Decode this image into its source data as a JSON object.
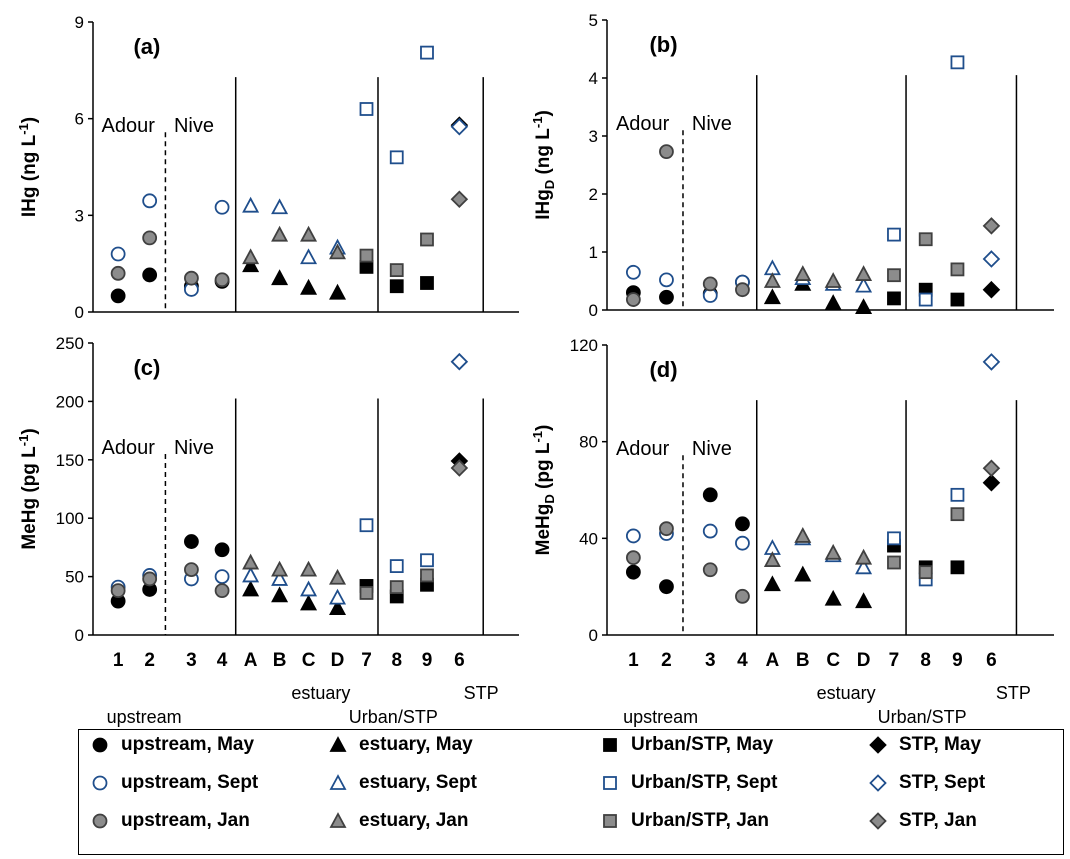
{
  "chart_data": [
    {
      "type": "scatter",
      "panel": "(a)",
      "ylabel": "IHg (ng L-1)",
      "ylabel_main": "IHg",
      "ylabel_sub": "",
      "ylabel_unit": " (ng L",
      "ylabel_sup": "-1",
      "ylabel_close": ")",
      "ylim": [
        0,
        9
      ],
      "yticks": [
        "0",
        "3",
        "6",
        "9"
      ],
      "categories": [
        "1",
        "2",
        "3",
        "4",
        "A",
        "B",
        "C",
        "D",
        "7",
        "8",
        "9",
        "6"
      ],
      "series": [
        {
          "name": "upstream, May",
          "x": [
            "1",
            "2",
            "3",
            "4"
          ],
          "values": [
            0.5,
            1.15,
            0.8,
            0.95
          ]
        },
        {
          "name": "upstream, Sept",
          "x": [
            "1",
            "2",
            "3",
            "4"
          ],
          "values": [
            1.8,
            3.45,
            0.7,
            3.25
          ]
        },
        {
          "name": "upstream, Jan",
          "x": [
            "1",
            "2",
            "3",
            "4"
          ],
          "values": [
            1.2,
            2.3,
            1.05,
            1.0
          ]
        },
        {
          "name": "estuary, May",
          "x": [
            "A",
            "B",
            "C",
            "D"
          ],
          "values": [
            1.45,
            1.05,
            0.75,
            0.6
          ]
        },
        {
          "name": "estuary, Sept",
          "x": [
            "A",
            "B",
            "C",
            "D"
          ],
          "values": [
            3.3,
            3.25,
            1.7,
            2.0
          ]
        },
        {
          "name": "estuary, Jan",
          "x": [
            "A",
            "B",
            "C",
            "D"
          ],
          "values": [
            1.7,
            2.4,
            2.4,
            1.85
          ]
        },
        {
          "name": "Urban/STP, May",
          "x": [
            "7",
            "8",
            "9"
          ],
          "values": [
            1.4,
            0.8,
            0.9
          ]
        },
        {
          "name": "Urban/STP, Sept",
          "x": [
            "7",
            "8",
            "9"
          ],
          "values": [
            6.3,
            4.8,
            8.05
          ]
        },
        {
          "name": "Urban/STP, Jan",
          "x": [
            "7",
            "8",
            "9"
          ],
          "values": [
            1.75,
            1.3,
            2.25
          ]
        },
        {
          "name": "STP, May",
          "x": [
            "6"
          ],
          "values": [
            5.8
          ]
        },
        {
          "name": "STP, Sept",
          "x": [
            "6"
          ],
          "values": [
            5.75
          ]
        },
        {
          "name": "STP, Jan",
          "x": [
            "6"
          ],
          "values": [
            3.5
          ]
        }
      ]
    },
    {
      "type": "scatter",
      "panel": "(b)",
      "ylabel": "IHgD (ng L-1)",
      "ylabel_main": "IHg",
      "ylabel_sub": "D",
      "ylabel_unit": " (ng L",
      "ylabel_sup": "-1",
      "ylabel_close": ")",
      "ylim": [
        0,
        5
      ],
      "yticks": [
        "0",
        "1",
        "2",
        "3",
        "4",
        "5"
      ],
      "categories": [
        "1",
        "2",
        "3",
        "4",
        "A",
        "B",
        "C",
        "D",
        "7",
        "8",
        "9",
        "6"
      ],
      "series": [
        {
          "name": "upstream, May",
          "x": [
            "1",
            "2",
            "3",
            "4"
          ],
          "values": [
            0.3,
            0.22,
            0.28,
            0.48
          ]
        },
        {
          "name": "upstream, Sept",
          "x": [
            "1",
            "2",
            "3",
            "4"
          ],
          "values": [
            0.65,
            0.52,
            0.25,
            0.48
          ]
        },
        {
          "name": "upstream, Jan",
          "x": [
            "1",
            "2",
            "3",
            "4"
          ],
          "values": [
            0.18,
            2.73,
            0.45,
            0.35
          ]
        },
        {
          "name": "estuary, May",
          "x": [
            "A",
            "B",
            "C",
            "D"
          ],
          "values": [
            0.22,
            0.45,
            0.12,
            0.05
          ]
        },
        {
          "name": "estuary, Sept",
          "x": [
            "A",
            "B",
            "C",
            "D"
          ],
          "values": [
            0.72,
            0.55,
            0.45,
            0.42
          ]
        },
        {
          "name": "estuary, Jan",
          "x": [
            "A",
            "B",
            "C",
            "D"
          ],
          "values": [
            0.5,
            0.62,
            0.5,
            0.62
          ]
        },
        {
          "name": "Urban/STP, May",
          "x": [
            "7",
            "8",
            "9"
          ],
          "values": [
            0.2,
            0.35,
            0.18
          ]
        },
        {
          "name": "Urban/STP, Sept",
          "x": [
            "7",
            "8",
            "9"
          ],
          "values": [
            1.3,
            0.18,
            4.27
          ]
        },
        {
          "name": "Urban/STP, Jan",
          "x": [
            "7",
            "8",
            "9"
          ],
          "values": [
            0.6,
            1.22,
            0.7
          ]
        },
        {
          "name": "STP, May",
          "x": [
            "6"
          ],
          "values": [
            0.35
          ]
        },
        {
          "name": "STP, Sept",
          "x": [
            "6"
          ],
          "values": [
            0.88
          ]
        },
        {
          "name": "STP, Jan",
          "x": [
            "6"
          ],
          "values": [
            1.45
          ]
        }
      ]
    },
    {
      "type": "scatter",
      "panel": "(c)",
      "ylabel": "MeHg (pg L-1)",
      "ylabel_main": "MeHg",
      "ylabel_sub": "",
      "ylabel_unit": " (pg L",
      "ylabel_sup": "-1",
      "ylabel_close": ")",
      "ylim": [
        0,
        250
      ],
      "yticks": [
        "0",
        "50",
        "100",
        "150",
        "200",
        "250"
      ],
      "categories": [
        "1",
        "2",
        "3",
        "4",
        "A",
        "B",
        "C",
        "D",
        "7",
        "8",
        "9",
        "6"
      ],
      "series": [
        {
          "name": "upstream, May",
          "x": [
            "1",
            "2",
            "3",
            "4"
          ],
          "values": [
            29,
            39,
            80,
            73
          ]
        },
        {
          "name": "upstream, Sept",
          "x": [
            "1",
            "2",
            "3",
            "4"
          ],
          "values": [
            41,
            51,
            48,
            50
          ]
        },
        {
          "name": "upstream, Jan",
          "x": [
            "1",
            "2",
            "3",
            "4"
          ],
          "values": [
            38,
            48,
            56,
            38
          ]
        },
        {
          "name": "estuary, May",
          "x": [
            "A",
            "B",
            "C",
            "D"
          ],
          "values": [
            39,
            34,
            27,
            23
          ]
        },
        {
          "name": "estuary, Sept",
          "x": [
            "A",
            "B",
            "C",
            "D"
          ],
          "values": [
            51,
            48,
            39,
            32
          ]
        },
        {
          "name": "estuary, Jan",
          "x": [
            "A",
            "B",
            "C",
            "D"
          ],
          "values": [
            62,
            56,
            56,
            49
          ]
        },
        {
          "name": "Urban/STP, May",
          "x": [
            "7",
            "8",
            "9"
          ],
          "values": [
            42,
            33,
            43
          ]
        },
        {
          "name": "Urban/STP, Sept",
          "x": [
            "7",
            "8",
            "9"
          ],
          "values": [
            94,
            59,
            64
          ]
        },
        {
          "name": "Urban/STP, Jan",
          "x": [
            "7",
            "8",
            "9"
          ],
          "values": [
            36,
            41,
            51
          ]
        },
        {
          "name": "STP, May",
          "x": [
            "6"
          ],
          "values": [
            149
          ]
        },
        {
          "name": "STP, Sept",
          "x": [
            "6"
          ],
          "values": [
            234
          ]
        },
        {
          "name": "STP, Jan",
          "x": [
            "6"
          ],
          "values": [
            143
          ]
        }
      ]
    },
    {
      "type": "scatter",
      "panel": "(d)",
      "ylabel": "MeHgD (pg L-1)",
      "ylabel_main": "MeHg",
      "ylabel_sub": "D",
      "ylabel_unit": " (pg L",
      "ylabel_sup": "-1",
      "ylabel_close": ")",
      "ylim": [
        0,
        120
      ],
      "yticks": [
        "0",
        "40",
        "80",
        "120"
      ],
      "categories": [
        "1",
        "2",
        "3",
        "4",
        "A",
        "B",
        "C",
        "D",
        "7",
        "8",
        "9",
        "6"
      ],
      "series": [
        {
          "name": "upstream, May",
          "x": [
            "1",
            "2",
            "3",
            "4"
          ],
          "values": [
            26,
            20,
            58,
            46
          ]
        },
        {
          "name": "upstream, Sept",
          "x": [
            "1",
            "2",
            "3",
            "4"
          ],
          "values": [
            41,
            42,
            43,
            38
          ]
        },
        {
          "name": "upstream, Jan",
          "x": [
            "1",
            "2",
            "3",
            "4"
          ],
          "values": [
            32,
            44,
            27,
            16
          ]
        },
        {
          "name": "estuary, May",
          "x": [
            "A",
            "B",
            "C",
            "D"
          ],
          "values": [
            21,
            25,
            15,
            14
          ]
        },
        {
          "name": "estuary, Sept",
          "x": [
            "A",
            "B",
            "C",
            "D"
          ],
          "values": [
            36,
            40,
            33,
            28
          ]
        },
        {
          "name": "estuary, Jan",
          "x": [
            "A",
            "B",
            "C",
            "D"
          ],
          "values": [
            31,
            41,
            34,
            32
          ]
        },
        {
          "name": "Urban/STP, May",
          "x": [
            "7",
            "8",
            "9"
          ],
          "values": [
            37,
            28,
            28
          ]
        },
        {
          "name": "Urban/STP, Sept",
          "x": [
            "7",
            "8",
            "9"
          ],
          "values": [
            40,
            23,
            58
          ]
        },
        {
          "name": "Urban/STP, Jan",
          "x": [
            "7",
            "8",
            "9"
          ],
          "values": [
            30,
            26,
            50
          ]
        },
        {
          "name": "STP, May",
          "x": [
            "6"
          ],
          "values": [
            63
          ]
        },
        {
          "name": "STP, Sept",
          "x": [
            "6"
          ],
          "values": [
            113
          ]
        },
        {
          "name": "STP, Jan",
          "x": [
            "6"
          ],
          "values": [
            69
          ]
        }
      ]
    }
  ],
  "site_labels": {
    "adour": "Adour",
    "nive": "Nive"
  },
  "group_labels": {
    "upstream": "upstream",
    "estuary": "estuary",
    "urban": "Urban/STP",
    "stp": "STP"
  },
  "legend": {
    "items": [
      {
        "label": "upstream, May",
        "shape": "circle",
        "fill": "#000000",
        "stroke": "#000000"
      },
      {
        "label": "estuary, May",
        "shape": "triangle",
        "fill": "#000000",
        "stroke": "#000000"
      },
      {
        "label": "Urban/STP, May",
        "shape": "square",
        "fill": "#000000",
        "stroke": "#000000"
      },
      {
        "label": "STP, May",
        "shape": "diamond",
        "fill": "#000000",
        "stroke": "#000000"
      },
      {
        "label": "upstream, Sept",
        "shape": "circle",
        "fill": "#ffffff",
        "stroke": "#1f4e8c"
      },
      {
        "label": "estuary, Sept",
        "shape": "triangle",
        "fill": "#ffffff",
        "stroke": "#1f4e8c"
      },
      {
        "label": "Urban/STP, Sept",
        "shape": "square",
        "fill": "#ffffff",
        "stroke": "#1f4e8c"
      },
      {
        "label": "STP, Sept",
        "shape": "diamond",
        "fill": "#ffffff",
        "stroke": "#1f4e8c"
      },
      {
        "label": "upstream, Jan",
        "shape": "circle",
        "fill": "#8c8c8c",
        "stroke": "#404040"
      },
      {
        "label": "estuary, Jan",
        "shape": "triangle",
        "fill": "#8c8c8c",
        "stroke": "#404040"
      },
      {
        "label": "Urban/STP, Jan",
        "shape": "square",
        "fill": "#8c8c8c",
        "stroke": "#404040"
      },
      {
        "label": "STP, Jan",
        "shape": "diamond",
        "fill": "#8c8c8c",
        "stroke": "#404040"
      }
    ]
  },
  "colors": {
    "may": "#000000",
    "sept": "#1f4e8c",
    "jan": "#8c8c8c",
    "jan_stroke": "#404040",
    "axis": "#000000"
  }
}
